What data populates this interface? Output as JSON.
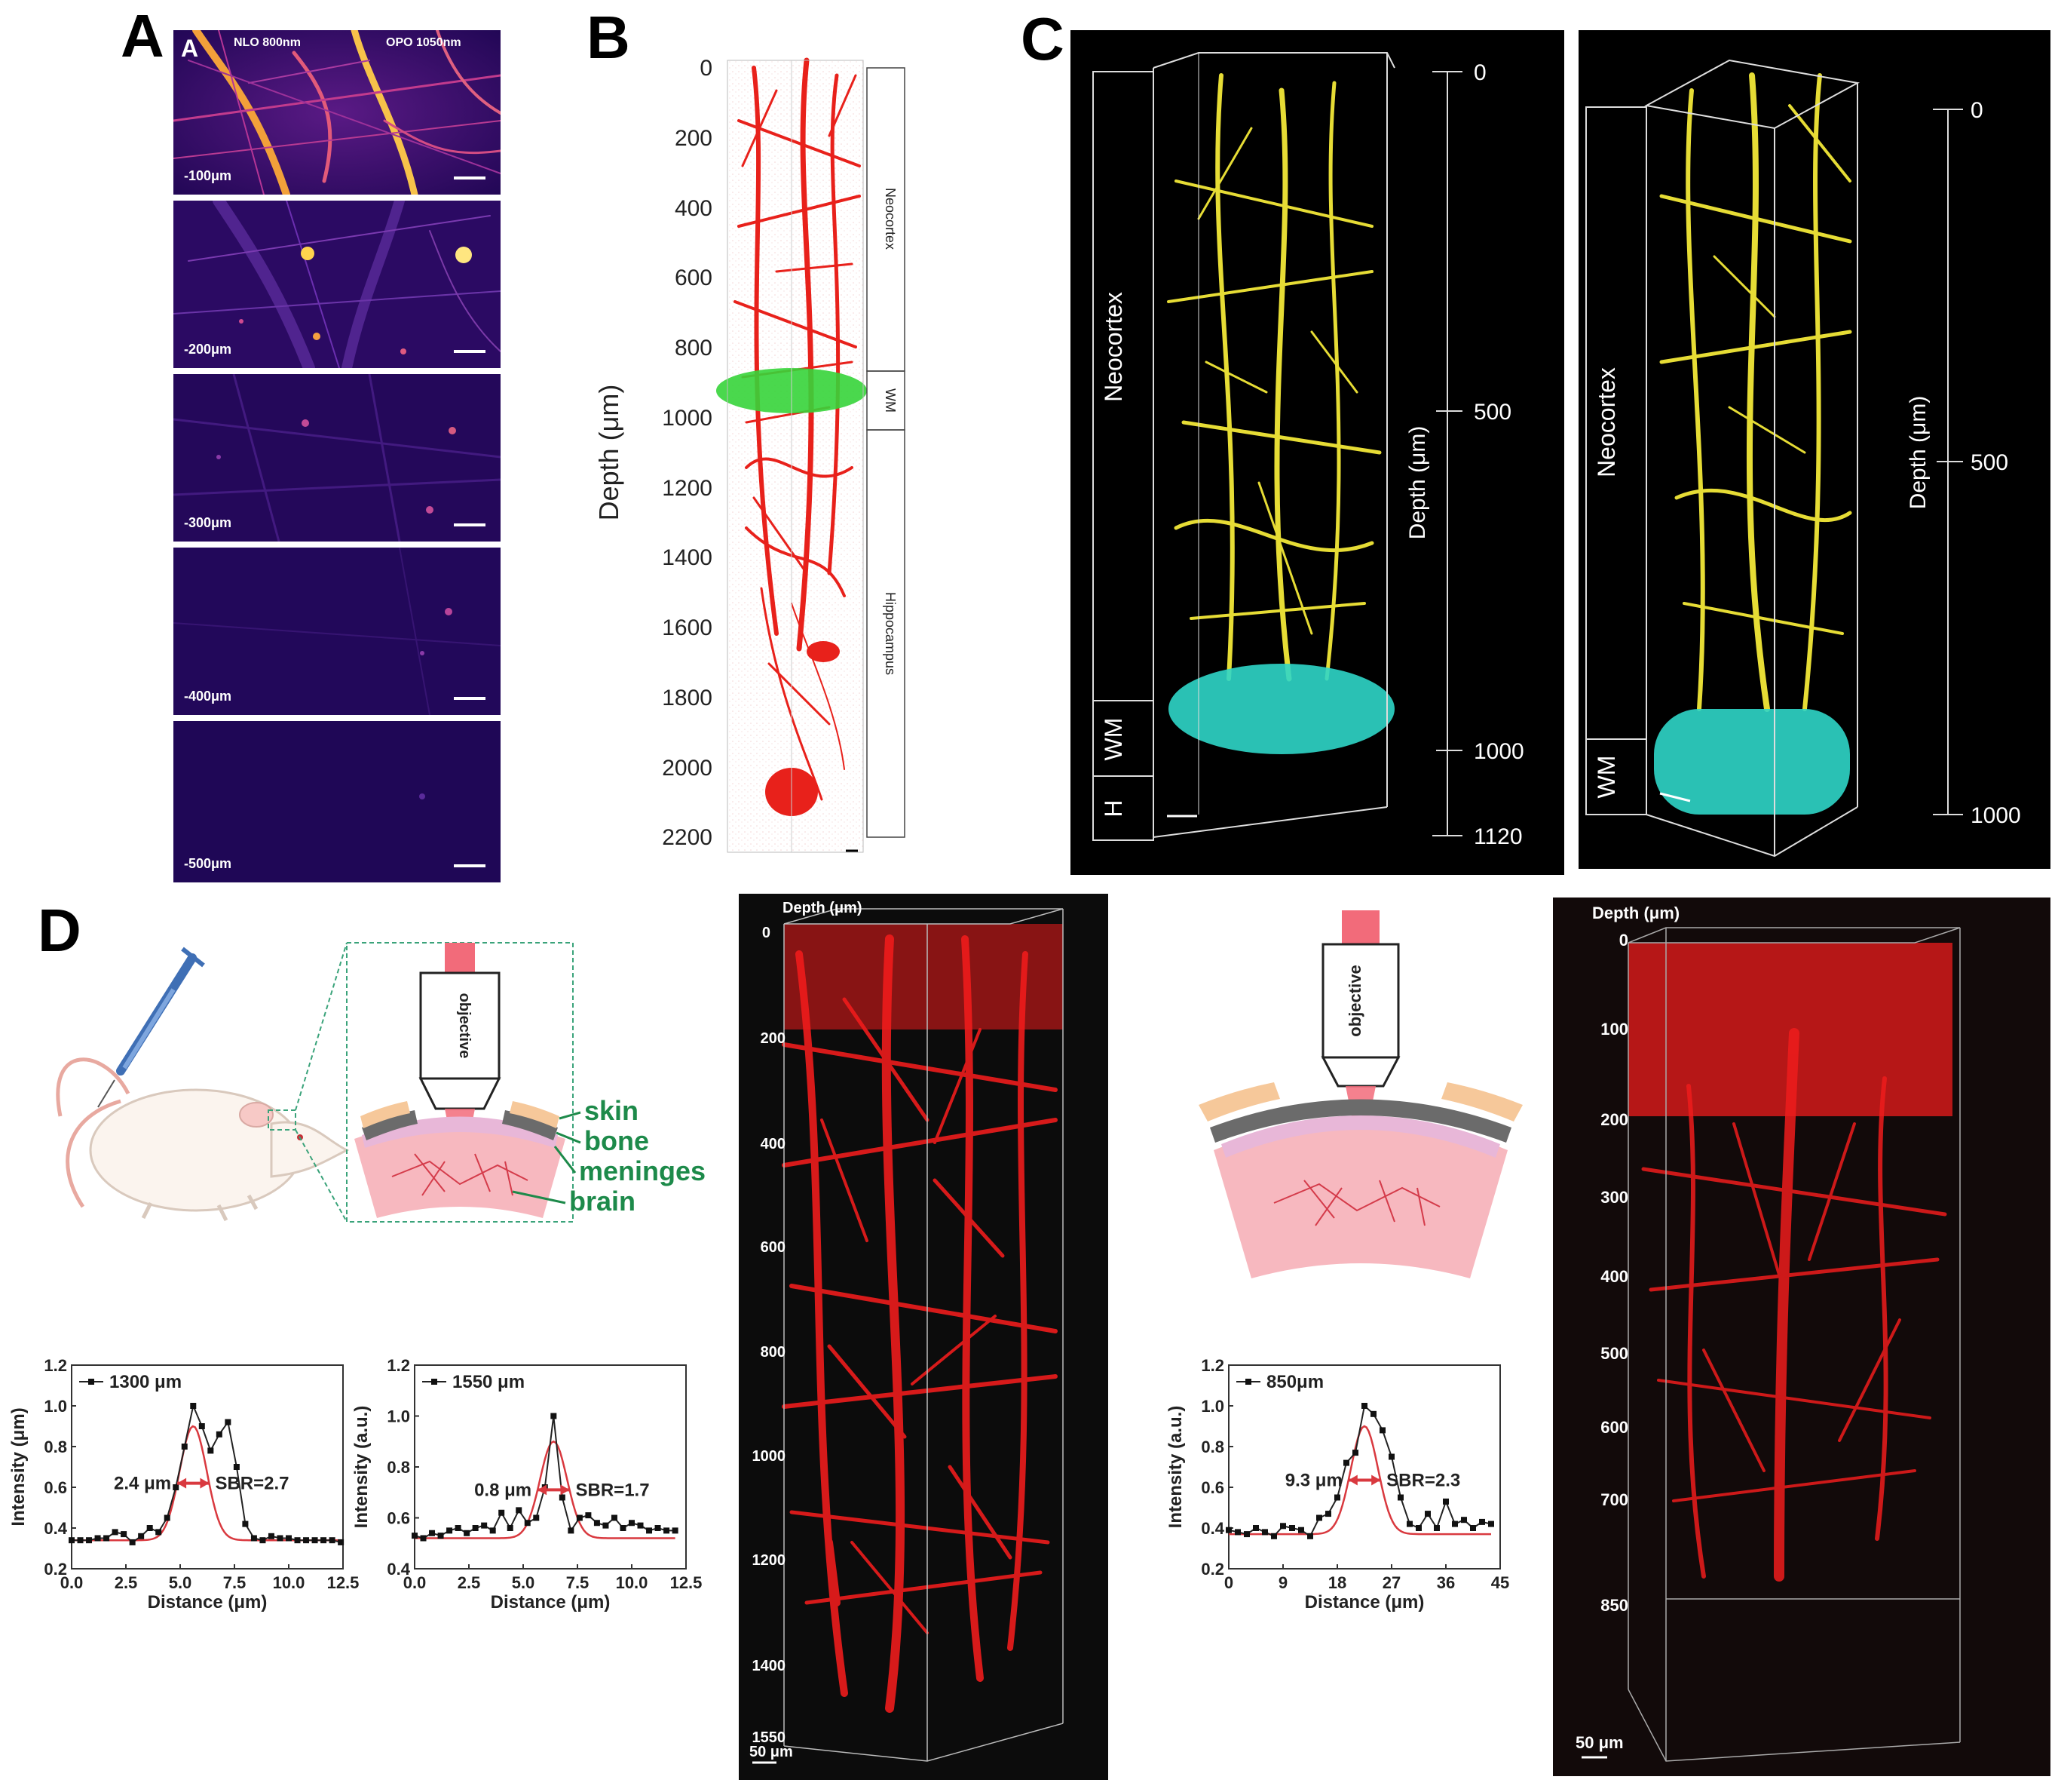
{
  "panels": {
    "A": {
      "label": "A",
      "inner_label": "A",
      "header_left": "NLO 800nm",
      "header_right": "OPO 1050nm",
      "tiles": [
        "-100μm",
        "-200μm",
        "-300μm",
        "-400μm",
        "-500μm"
      ],
      "colors": {
        "bright": "#ffd34d",
        "mid": "#e0408a",
        "dark": "#1d0745"
      }
    },
    "B": {
      "label": "B",
      "ylabel": "Depth (μm)",
      "ticks": [
        "0",
        "200",
        "400",
        "600",
        "800",
        "1000",
        "1200",
        "1400",
        "1600",
        "1800",
        "2000",
        "2200"
      ],
      "regions": [
        "Neocortex",
        "WM",
        "Hippocampus"
      ],
      "colors": {
        "vessel": "#e8211b",
        "wm": "#36d43a"
      }
    },
    "C": {
      "label": "C",
      "left": {
        "regions": [
          "Neocortex",
          "WM",
          "H"
        ],
        "axis_label": "Depth (μm)",
        "ticks": [
          "0",
          "500",
          "1000",
          "1120"
        ]
      },
      "right": {
        "regions": [
          "Neocortex",
          "WM"
        ],
        "axis_label": "Depth (μm)",
        "ticks": [
          "0",
          "500",
          "1000"
        ]
      },
      "colors": {
        "vessel": "#e6dc35",
        "wm": "#2fd6c8"
      }
    },
    "D": {
      "label": "D",
      "schematic1": {
        "objective": "objective",
        "layers": [
          "skin",
          "bone",
          "meninges",
          "brain"
        ]
      },
      "schematic2": {
        "objective": "objective"
      },
      "plot1": {
        "legend": "1300 μm",
        "ylabel": "Intensity (μm)",
        "xlabel": "Distance (μm)",
        "xticks": [
          "0.0",
          "2.5",
          "5.0",
          "7.5",
          "10.0",
          "12.5"
        ],
        "yticks": [
          "0.2",
          "0.4",
          "0.6",
          "0.8",
          "1.0",
          "1.2"
        ],
        "fwhm": "2.4 μm",
        "sbr": "SBR=2.7"
      },
      "plot2": {
        "legend": "1550 μm",
        "ylabel": "Intensity (a.u.)",
        "xlabel": "Distance (μm)",
        "xticks": [
          "0.0",
          "2.5",
          "5.0",
          "7.5",
          "10.0",
          "12.5"
        ],
        "yticks": [
          "0.4",
          "0.6",
          "0.8",
          "1.0",
          "1.2"
        ],
        "fwhm": "0.8 μm",
        "sbr": "SBR=1.7"
      },
      "plot3": {
        "legend": "850μm",
        "ylabel": "Intensity (a.u.)",
        "xlabel": "Distance (μm)",
        "xticks": [
          "0",
          "9",
          "18",
          "27",
          "36",
          "45"
        ],
        "yticks": [
          "0.2",
          "0.4",
          "0.6",
          "0.8",
          "1.0",
          "1.2"
        ],
        "fwhm": "9.3 μm",
        "sbr": "SBR=2.3"
      },
      "volume1": {
        "depth_title": "Depth (μm)",
        "ticks": [
          "0",
          "200",
          "400",
          "600",
          "800",
          "1000",
          "1200",
          "1400",
          "1550"
        ],
        "scalebar": "50 μm"
      },
      "volume2": {
        "depth_title": "Depth (μm)",
        "ticks": [
          "0",
          "100",
          "200",
          "300",
          "400",
          "500",
          "600",
          "700",
          "850"
        ],
        "scalebar": "50 μm"
      },
      "colors": {
        "vessel": "#ee1c1c",
        "skin": "#f6c89a",
        "bone": "#6b6b6b",
        "meninges": "#e8b7d8",
        "brain": "#f7b8bf",
        "label_green": "#1d8a4a",
        "beam": "#f26b7a"
      }
    }
  },
  "chart_data": [
    {
      "type": "scatter",
      "title": "",
      "xlabel": "Distance (μm)",
      "ylabel": "Intensity (μm)",
      "xlim": [
        0,
        12.5
      ],
      "ylim": [
        0.2,
        1.2
      ],
      "series": [
        {
          "name": "1300 μm",
          "x": [
            0,
            0.4,
            0.8,
            1.2,
            1.6,
            2.0,
            2.4,
            2.8,
            3.2,
            3.6,
            4.0,
            4.4,
            4.8,
            5.2,
            5.6,
            6.0,
            6.4,
            6.8,
            7.2,
            7.6,
            8.0,
            8.4,
            8.8,
            9.2,
            9.6,
            10.0,
            10.4,
            10.8,
            11.2,
            11.6,
            12.0,
            12.4
          ],
          "values": [
            0.34,
            0.34,
            0.34,
            0.35,
            0.35,
            0.38,
            0.37,
            0.33,
            0.36,
            0.4,
            0.38,
            0.45,
            0.6,
            0.8,
            1.0,
            0.9,
            0.78,
            0.86,
            0.92,
            0.7,
            0.42,
            0.35,
            0.34,
            0.36,
            0.35,
            0.35,
            0.34,
            0.34,
            0.34,
            0.34,
            0.34,
            0.33
          ]
        }
      ]
    },
    {
      "type": "scatter",
      "title": "",
      "xlabel": "Distance (μm)",
      "ylabel": "Intensity (a.u.)",
      "xlim": [
        0,
        12.5
      ],
      "ylim": [
        0.4,
        1.2
      ],
      "series": [
        {
          "name": "1550 μm",
          "x": [
            0,
            0.4,
            0.8,
            1.2,
            1.6,
            2.0,
            2.4,
            2.8,
            3.2,
            3.6,
            4.0,
            4.4,
            4.8,
            5.2,
            5.6,
            6.0,
            6.4,
            6.8,
            7.2,
            7.6,
            8.0,
            8.4,
            8.8,
            9.2,
            9.6,
            10.0,
            10.4,
            10.8,
            11.2,
            11.6,
            12.0
          ],
          "values": [
            0.53,
            0.52,
            0.54,
            0.53,
            0.55,
            0.56,
            0.54,
            0.56,
            0.57,
            0.55,
            0.62,
            0.56,
            0.63,
            0.58,
            0.6,
            0.72,
            1.0,
            0.68,
            0.55,
            0.6,
            0.61,
            0.58,
            0.57,
            0.6,
            0.56,
            0.58,
            0.57,
            0.55,
            0.56,
            0.55,
            0.55
          ]
        }
      ]
    },
    {
      "type": "scatter",
      "title": "",
      "xlabel": "Distance (μm)",
      "ylabel": "Intensity (a.u.)",
      "xlim": [
        0,
        45
      ],
      "ylim": [
        0.2,
        1.2
      ],
      "series": [
        {
          "name": "850μm",
          "x": [
            0,
            1.5,
            3,
            4.5,
            6,
            7.5,
            9,
            10.5,
            12,
            13.5,
            15,
            16.5,
            18,
            19.5,
            21,
            22.5,
            24,
            25.5,
            27,
            28.5,
            30,
            31.5,
            33,
            34.5,
            36,
            37.5,
            39,
            40.5,
            42,
            43.5
          ],
          "values": [
            0.39,
            0.38,
            0.37,
            0.4,
            0.38,
            0.36,
            0.41,
            0.4,
            0.39,
            0.36,
            0.45,
            0.47,
            0.55,
            0.72,
            0.77,
            1.0,
            0.96,
            0.88,
            0.75,
            0.55,
            0.42,
            0.4,
            0.47,
            0.4,
            0.53,
            0.42,
            0.44,
            0.4,
            0.43,
            0.42
          ]
        }
      ]
    }
  ]
}
